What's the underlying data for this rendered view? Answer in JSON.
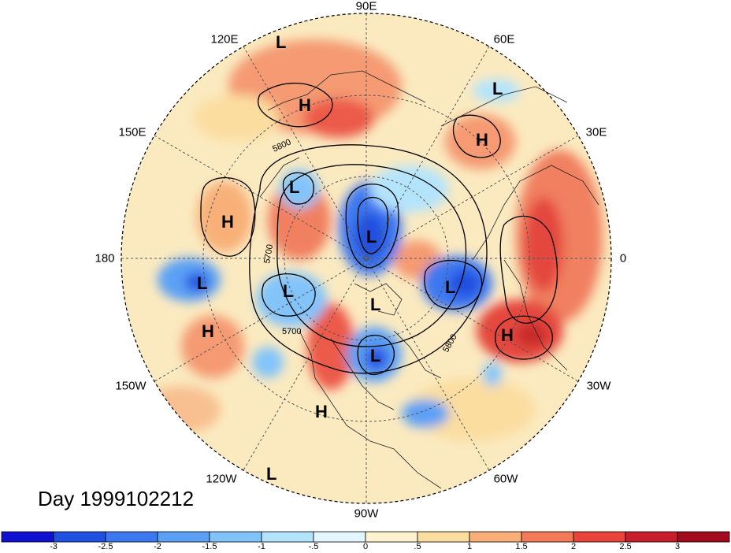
{
  "title": "Day 1999102212",
  "lon_labels": [
    "90E",
    "60E",
    "30E",
    "0",
    "30W",
    "60W",
    "90W",
    "120W",
    "150W",
    "180",
    "150E",
    "120E"
  ],
  "pressure_centers": [
    {
      "type": "L"
    },
    {
      "type": "L"
    },
    {
      "type": "L"
    },
    {
      "type": "L"
    },
    {
      "type": "L"
    },
    {
      "type": "L"
    },
    {
      "type": "L"
    },
    {
      "type": "L"
    },
    {
      "type": "L"
    },
    {
      "type": "L"
    },
    {
      "type": "H"
    },
    {
      "type": "H"
    },
    {
      "type": "H"
    },
    {
      "type": "H"
    },
    {
      "type": "H"
    },
    {
      "type": "H"
    }
  ],
  "contour_labels": [
    "5800",
    "5700",
    "5700",
    "5800"
  ],
  "colorbar": {
    "ticks": [
      "-3",
      "-2.5",
      "-2",
      "-1.5",
      "-1",
      "-.5",
      "0",
      ".5",
      "1",
      "1.5",
      "2",
      "2.5",
      "3"
    ],
    "colors": [
      "#1010d0",
      "#2050e0",
      "#3c78f0",
      "#5ca0f5",
      "#82c4fa",
      "#b4e4fc",
      "#e4f6fd",
      "#fdf3d0",
      "#fbdda0",
      "#f8b078",
      "#f37a58",
      "#e8443c",
      "#c81e2c",
      "#a00c1e"
    ]
  }
}
